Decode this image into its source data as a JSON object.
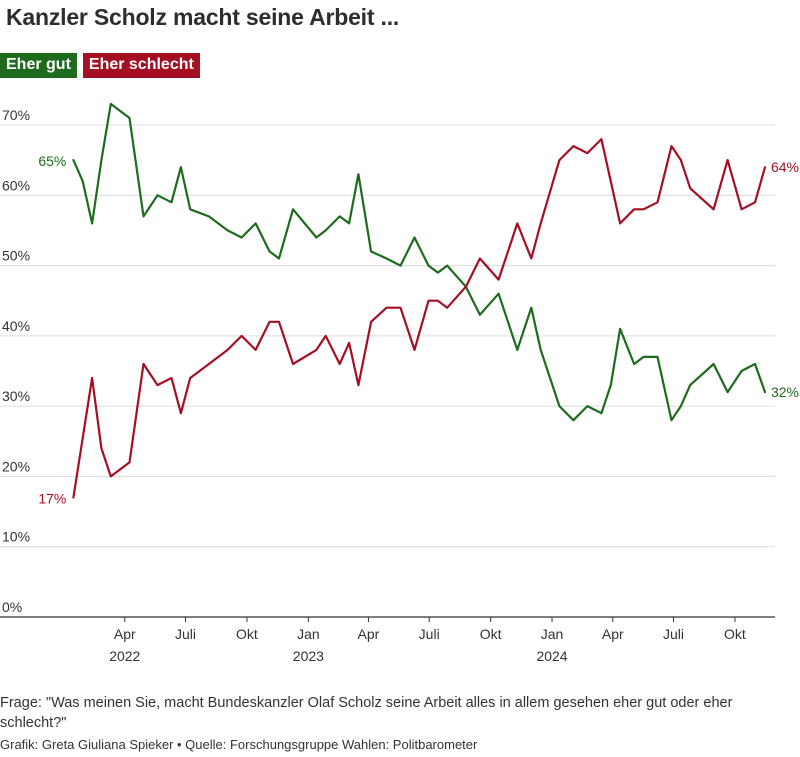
{
  "title": "Kanzler Scholz macht seine Arbeit ...",
  "legend": [
    {
      "label": "Eher gut",
      "color": "#1e6b1e"
    },
    {
      "label": "Eher schlecht",
      "color": "#a50f23"
    }
  ],
  "footer": {
    "question": "Frage: \"Was meinen Sie, macht Bundeskanzler Olaf Scholz seine Arbeit alles in allem gesehen eher gut oder eher schlecht?\"",
    "credit": "Grafik: Greta Giuliana Spieker • Quelle: Forschungsgruppe Wahlen: Politbarometer"
  },
  "chart_data": {
    "type": "line",
    "title": "Kanzler Scholz macht seine Arbeit ...",
    "xlabel": "",
    "ylabel": "",
    "ylim": [
      0,
      70
    ],
    "xlim": [
      "2021-12-01",
      "2024-11-30"
    ],
    "grid": true,
    "legend_position": "top-left",
    "y_ticks": [
      {
        "value": 0,
        "label": "0%"
      },
      {
        "value": 10,
        "label": "10%"
      },
      {
        "value": 20,
        "label": "20%"
      },
      {
        "value": 30,
        "label": "30%"
      },
      {
        "value": 40,
        "label": "40%"
      },
      {
        "value": 50,
        "label": "50%"
      },
      {
        "value": 60,
        "label": "60%"
      },
      {
        "value": 70,
        "label": "70%"
      }
    ],
    "x_ticks": [
      {
        "date": "2022-04-01",
        "label": "Apr",
        "year": "2022"
      },
      {
        "date": "2022-07-01",
        "label": "Juli",
        "year": ""
      },
      {
        "date": "2022-10-01",
        "label": "Okt",
        "year": ""
      },
      {
        "date": "2023-01-01",
        "label": "Jan",
        "year": "2023"
      },
      {
        "date": "2023-04-01",
        "label": "Apr",
        "year": ""
      },
      {
        "date": "2023-07-01",
        "label": "Juli",
        "year": ""
      },
      {
        "date": "2023-10-01",
        "label": "Okt",
        "year": ""
      },
      {
        "date": "2024-01-01",
        "label": "Jan",
        "year": "2024"
      },
      {
        "date": "2024-04-01",
        "label": "Apr",
        "year": ""
      },
      {
        "date": "2024-07-01",
        "label": "Juli",
        "year": ""
      },
      {
        "date": "2024-10-01",
        "label": "Okt",
        "year": ""
      }
    ],
    "series": [
      {
        "name": "Eher gut",
        "color": "#1e6b1e",
        "start_label": "65%",
        "end_label": "32%",
        "points": [
          [
            "2022-01-14",
            65
          ],
          [
            "2022-01-28",
            62
          ],
          [
            "2022-02-11",
            56
          ],
          [
            "2022-02-25",
            65
          ],
          [
            "2022-03-11",
            73
          ],
          [
            "2022-04-08",
            71
          ],
          [
            "2022-04-29",
            57
          ],
          [
            "2022-05-20",
            60
          ],
          [
            "2022-06-10",
            59
          ],
          [
            "2022-06-24",
            64
          ],
          [
            "2022-07-08",
            58
          ],
          [
            "2022-08-05",
            57
          ],
          [
            "2022-09-02",
            55
          ],
          [
            "2022-09-23",
            54
          ],
          [
            "2022-10-14",
            56
          ],
          [
            "2022-11-04",
            52
          ],
          [
            "2022-11-18",
            51
          ],
          [
            "2022-12-09",
            58
          ],
          [
            "2023-01-13",
            54
          ],
          [
            "2023-01-27",
            55
          ],
          [
            "2023-02-17",
            57
          ],
          [
            "2023-03-03",
            56
          ],
          [
            "2023-03-17",
            63
          ],
          [
            "2023-04-05",
            52
          ],
          [
            "2023-04-28",
            51
          ],
          [
            "2023-05-19",
            50
          ],
          [
            "2023-06-09",
            54
          ],
          [
            "2023-06-30",
            50
          ],
          [
            "2023-07-14",
            49
          ],
          [
            "2023-07-28",
            50
          ],
          [
            "2023-08-25",
            47
          ],
          [
            "2023-09-15",
            43
          ],
          [
            "2023-10-13",
            46
          ],
          [
            "2023-11-10",
            38
          ],
          [
            "2023-12-01",
            44
          ],
          [
            "2023-12-15",
            38
          ],
          [
            "2024-01-12",
            30
          ],
          [
            "2024-02-02",
            28
          ],
          [
            "2024-02-23",
            30
          ],
          [
            "2024-03-15",
            29
          ],
          [
            "2024-03-29",
            33
          ],
          [
            "2024-04-12",
            41
          ],
          [
            "2024-05-03",
            36
          ],
          [
            "2024-05-17",
            37
          ],
          [
            "2024-06-07",
            37
          ],
          [
            "2024-06-28",
            28
          ],
          [
            "2024-07-12",
            30
          ],
          [
            "2024-07-26",
            33
          ],
          [
            "2024-08-30",
            36
          ],
          [
            "2024-09-20",
            32
          ],
          [
            "2024-10-11",
            35
          ],
          [
            "2024-10-31",
            36
          ],
          [
            "2024-11-15",
            32
          ]
        ]
      },
      {
        "name": "Eher schlecht",
        "color": "#a50f23",
        "start_label": "17%",
        "end_label": "64%",
        "points": [
          [
            "2022-01-14",
            17
          ],
          [
            "2022-02-11",
            34
          ],
          [
            "2022-02-25",
            24
          ],
          [
            "2022-03-11",
            20
          ],
          [
            "2022-04-08",
            22
          ],
          [
            "2022-04-29",
            36
          ],
          [
            "2022-05-20",
            33
          ],
          [
            "2022-06-10",
            34
          ],
          [
            "2022-06-24",
            29
          ],
          [
            "2022-07-08",
            34
          ],
          [
            "2022-08-05",
            36
          ],
          [
            "2022-09-02",
            38
          ],
          [
            "2022-09-23",
            40
          ],
          [
            "2022-10-14",
            38
          ],
          [
            "2022-11-04",
            42
          ],
          [
            "2022-11-18",
            42
          ],
          [
            "2022-12-09",
            36
          ],
          [
            "2023-01-13",
            38
          ],
          [
            "2023-01-27",
            40
          ],
          [
            "2023-02-17",
            36
          ],
          [
            "2023-03-03",
            39
          ],
          [
            "2023-03-17",
            33
          ],
          [
            "2023-04-05",
            42
          ],
          [
            "2023-04-28",
            44
          ],
          [
            "2023-05-19",
            44
          ],
          [
            "2023-06-09",
            38
          ],
          [
            "2023-06-30",
            45
          ],
          [
            "2023-07-14",
            45
          ],
          [
            "2023-07-28",
            44
          ],
          [
            "2023-08-25",
            47
          ],
          [
            "2023-09-15",
            51
          ],
          [
            "2023-10-13",
            48
          ],
          [
            "2023-11-10",
            56
          ],
          [
            "2023-12-01",
            51
          ],
          [
            "2023-12-15",
            56
          ],
          [
            "2024-01-12",
            65
          ],
          [
            "2024-02-02",
            67
          ],
          [
            "2024-02-23",
            66
          ],
          [
            "2024-03-15",
            68
          ],
          [
            "2024-04-12",
            56
          ],
          [
            "2024-05-03",
            58
          ],
          [
            "2024-05-17",
            58
          ],
          [
            "2024-06-07",
            59
          ],
          [
            "2024-06-28",
            67
          ],
          [
            "2024-07-12",
            65
          ],
          [
            "2024-07-26",
            61
          ],
          [
            "2024-08-30",
            58
          ],
          [
            "2024-09-20",
            65
          ],
          [
            "2024-10-11",
            58
          ],
          [
            "2024-10-31",
            59
          ],
          [
            "2024-11-15",
            64
          ]
        ]
      }
    ]
  }
}
